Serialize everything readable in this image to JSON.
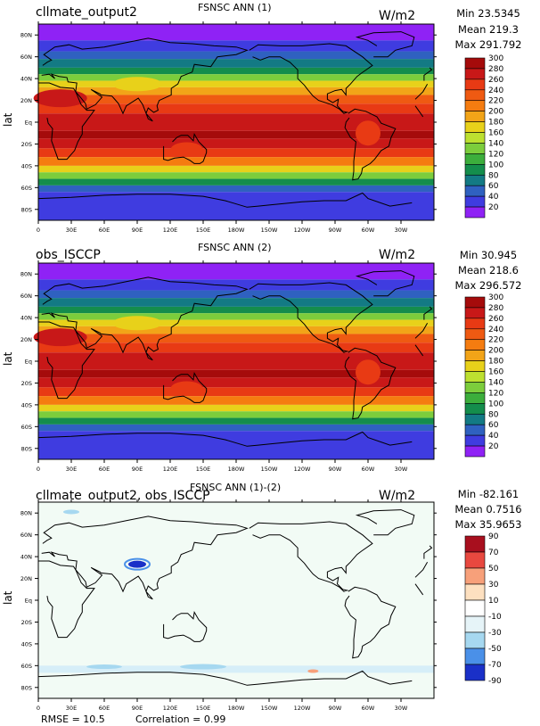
{
  "panels": [
    {
      "case": "cllmate_output2",
      "var": "FSNSC ANN (1)",
      "units": "W/m2",
      "stats": {
        "min": "Min 23.5345",
        "mean": "Mean 219.3",
        "max": "Max 291.792"
      },
      "ylabel": "lat",
      "colorbar": [
        "300",
        "280",
        "260",
        "240",
        "220",
        "200",
        "180",
        "160",
        "140",
        "120",
        "100",
        "80",
        "60",
        "40",
        "20"
      ],
      "colors": [
        "#a50b0b",
        "#c81818",
        "#e83a14",
        "#ef5a12",
        "#f57c10",
        "#f2a418",
        "#e8d11a",
        "#bde030",
        "#7ccd3c",
        "#3cae3c",
        "#148d4c",
        "#137a84",
        "#2f61c0",
        "#3f3ce0",
        "#8f22f5"
      ]
    },
    {
      "case": "obs_ISCCP",
      "var": "FSNSC ANN (2)",
      "units": "W/m2",
      "stats": {
        "min": "Min 30.945",
        "mean": "Mean 218.6",
        "max": "Max 296.572"
      },
      "ylabel": "lat",
      "colorbar": [
        "300",
        "280",
        "260",
        "240",
        "220",
        "200",
        "180",
        "160",
        "140",
        "120",
        "100",
        "80",
        "60",
        "40",
        "20"
      ],
      "colors": [
        "#a50b0b",
        "#c81818",
        "#e83a14",
        "#ef5a12",
        "#f57c10",
        "#f2a418",
        "#e8d11a",
        "#bde030",
        "#7ccd3c",
        "#3cae3c",
        "#148d4c",
        "#137a84",
        "#2f61c0",
        "#3f3ce0",
        "#8f22f5"
      ]
    },
    {
      "case": "cllmate_output2, obs_ISCCP",
      "var": "FSNSC ANN (1)-(2)",
      "units": "W/m2",
      "stats": {
        "min": "Min -82.161",
        "mean": "Mean 0.7516",
        "max": "Max 35.9653"
      },
      "ylabel": "lat",
      "colorbar": [
        "90",
        "70",
        "50",
        "30",
        "10",
        "-10",
        "-30",
        "-50",
        "-70",
        "-90"
      ],
      "colors": [
        "#a80f1e",
        "#e8483f",
        "#f7a07a",
        "#fde0c0",
        "#ffffff",
        "#e6f4f8",
        "#a6d8f0",
        "#4a90e8",
        "#1a30c8"
      ]
    }
  ],
  "lat_ticks": [
    "80N",
    "60N",
    "40N",
    "20N",
    "Eq",
    "20S",
    "40S",
    "60S",
    "80S"
  ],
  "lon_ticks": [
    "0",
    "30E",
    "60E",
    "90E",
    "120E",
    "150E",
    "180W",
    "150W",
    "120W",
    "90W",
    "60W",
    "30W"
  ],
  "footer": {
    "rmse": "RMSE = 10.5",
    "corr": "Correlation = 0.99"
  }
}
